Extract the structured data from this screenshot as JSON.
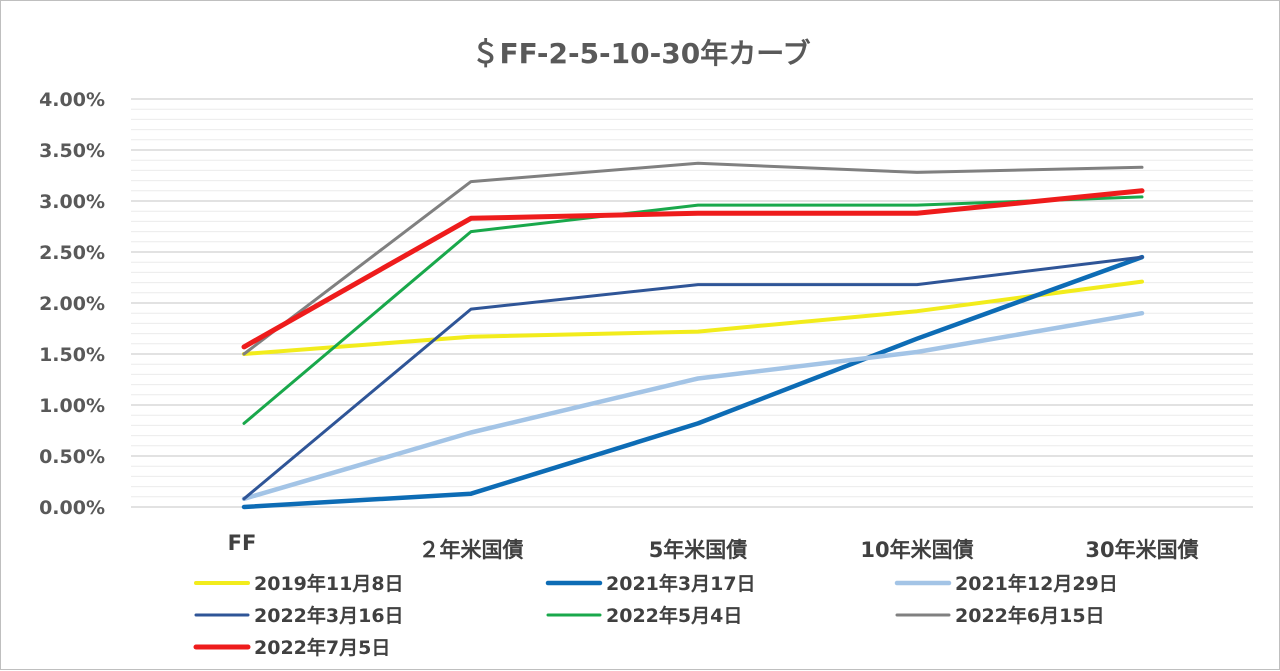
{
  "chart_data": {
    "type": "line",
    "title": "＄FF-2-5-10-30年カーブ",
    "categories": [
      "FF",
      "２年米国債",
      "5年米国債",
      "10年米国債",
      "30年米国債"
    ],
    "y_ticks": [
      "0.00%",
      "0.50%",
      "1.00%",
      "1.50%",
      "2.00%",
      "2.50%",
      "3.00%",
      "3.50%",
      "4.00%"
    ],
    "ylim": [
      0,
      4.0
    ],
    "y_unit": "%",
    "grid": true,
    "legend_position": "bottom",
    "series": [
      {
        "name": "2019年11月8日",
        "color": "#f2ec1c",
        "values": [
          1.5,
          1.67,
          1.72,
          1.92,
          2.21
        ]
      },
      {
        "name": "2021年3月17日",
        "color": "#0d6cb5",
        "values": [
          0.0,
          0.13,
          0.82,
          1.65,
          2.45
        ]
      },
      {
        "name": "2021年12月29日",
        "color": "#a3c4e6",
        "values": [
          0.08,
          0.73,
          1.26,
          1.52,
          1.9
        ]
      },
      {
        "name": "2022年3月16日",
        "color": "#2f5597",
        "values": [
          0.08,
          1.94,
          2.18,
          2.18,
          2.45
        ]
      },
      {
        "name": "2022年5月4日",
        "color": "#19a84b",
        "values": [
          0.82,
          2.7,
          2.96,
          2.96,
          3.04
        ]
      },
      {
        "name": "2022年6月15日",
        "color": "#808080",
        "values": [
          1.5,
          3.19,
          3.37,
          3.28,
          3.33
        ]
      },
      {
        "name": "2022年7月5日",
        "color": "#ee1c1c",
        "values": [
          1.57,
          2.83,
          2.88,
          2.88,
          3.1
        ]
      }
    ]
  }
}
